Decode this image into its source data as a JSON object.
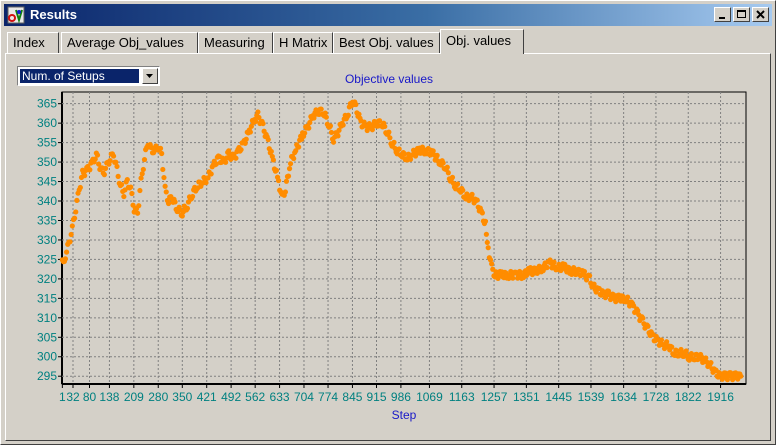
{
  "window": {
    "title": "Results"
  },
  "tabs": [
    {
      "label": "Index"
    },
    {
      "label": "Average Obj_values"
    },
    {
      "label": "Measuring"
    },
    {
      "label": "H Matrix"
    },
    {
      "label": "Best Obj. values"
    },
    {
      "label": "Obj. values",
      "active": true
    }
  ],
  "dropdown": {
    "selected": "Num. of Setups"
  },
  "colors": {
    "title_text": "#1818c8",
    "tick_text": "#008080",
    "points": "#ff8c00",
    "grid": "#808080"
  },
  "chart_data": {
    "type": "scatter",
    "title": "Objective values",
    "xlabel": "Step",
    "ylabel": "",
    "grid": true,
    "ylim": [
      293,
      368
    ],
    "yticks": [
      295,
      300,
      305,
      310,
      315,
      320,
      325,
      330,
      335,
      340,
      345,
      350,
      355,
      360,
      365
    ],
    "xlim": [
      0,
      1990
    ],
    "xtick_labels": [
      "1",
      "32",
      "80",
      "138",
      "209",
      "280",
      "350",
      "421",
      "492",
      "562",
      "633",
      "704",
      "774",
      "845",
      "915",
      "986",
      "1069",
      "1163",
      "1257",
      "1351",
      "1445",
      "1539",
      "1634",
      "1728",
      "1822",
      "1916"
    ],
    "xtick_values": [
      1,
      32,
      80,
      138,
      209,
      280,
      350,
      421,
      492,
      562,
      633,
      704,
      774,
      845,
      915,
      986,
      1069,
      1163,
      1257,
      1351,
      1445,
      1539,
      1634,
      1728,
      1822,
      1916
    ],
    "series_anchor_points": [
      [
        1,
        324
      ],
      [
        10,
        326
      ],
      [
        20,
        329
      ],
      [
        30,
        333
      ],
      [
        40,
        338
      ],
      [
        50,
        343
      ],
      [
        60,
        347
      ],
      [
        75,
        348
      ],
      [
        90,
        350
      ],
      [
        100,
        352
      ],
      [
        110,
        349
      ],
      [
        120,
        347
      ],
      [
        130,
        349
      ],
      [
        140,
        351
      ],
      [
        150,
        352
      ],
      [
        160,
        348
      ],
      [
        170,
        344
      ],
      [
        180,
        342
      ],
      [
        190,
        345
      ],
      [
        200,
        343
      ],
      [
        210,
        338
      ],
      [
        220,
        337
      ],
      [
        230,
        345
      ],
      [
        240,
        351
      ],
      [
        250,
        355
      ],
      [
        260,
        353
      ],
      [
        270,
        353
      ],
      [
        280,
        354
      ],
      [
        290,
        352
      ],
      [
        300,
        343
      ],
      [
        310,
        340
      ],
      [
        320,
        341
      ],
      [
        335,
        338
      ],
      [
        350,
        337
      ],
      [
        365,
        339
      ],
      [
        380,
        342
      ],
      [
        395,
        344
      ],
      [
        410,
        345
      ],
      [
        425,
        346
      ],
      [
        440,
        349
      ],
      [
        455,
        351
      ],
      [
        470,
        350
      ],
      [
        485,
        352
      ],
      [
        500,
        351
      ],
      [
        515,
        353
      ],
      [
        530,
        355
      ],
      [
        545,
        358
      ],
      [
        560,
        361
      ],
      [
        570,
        362
      ],
      [
        585,
        359
      ],
      [
        600,
        355
      ],
      [
        615,
        350
      ],
      [
        630,
        345
      ],
      [
        640,
        341
      ],
      [
        650,
        343
      ],
      [
        665,
        350
      ],
      [
        680,
        353
      ],
      [
        700,
        357
      ],
      [
        715,
        359
      ],
      [
        730,
        362
      ],
      [
        745,
        363
      ],
      [
        760,
        363
      ],
      [
        775,
        360
      ],
      [
        790,
        356
      ],
      [
        800,
        357
      ],
      [
        815,
        360
      ],
      [
        830,
        362
      ],
      [
        845,
        366
      ],
      [
        855,
        364
      ],
      [
        870,
        360
      ],
      [
        885,
        359
      ],
      [
        900,
        359
      ],
      [
        915,
        360
      ],
      [
        930,
        360
      ],
      [
        945,
        358
      ],
      [
        960,
        355
      ],
      [
        975,
        353
      ],
      [
        990,
        352
      ],
      [
        1005,
        351
      ],
      [
        1020,
        352
      ],
      [
        1040,
        353
      ],
      [
        1060,
        353
      ],
      [
        1080,
        352
      ],
      [
        1100,
        350
      ],
      [
        1115,
        349
      ],
      [
        1130,
        346
      ],
      [
        1145,
        344
      ],
      [
        1160,
        343
      ],
      [
        1175,
        341
      ],
      [
        1190,
        341
      ],
      [
        1205,
        340
      ],
      [
        1220,
        337
      ],
      [
        1232,
        334
      ],
      [
        1240,
        328
      ],
      [
        1250,
        323
      ],
      [
        1260,
        321
      ],
      [
        1280,
        321
      ],
      [
        1300,
        321
      ],
      [
        1320,
        321
      ],
      [
        1340,
        321
      ],
      [
        1360,
        322
      ],
      [
        1380,
        322
      ],
      [
        1400,
        323
      ],
      [
        1420,
        324
      ],
      [
        1440,
        323
      ],
      [
        1460,
        323
      ],
      [
        1480,
        322
      ],
      [
        1500,
        322
      ],
      [
        1520,
        321
      ],
      [
        1535,
        320
      ],
      [
        1545,
        318
      ],
      [
        1560,
        317
      ],
      [
        1575,
        316
      ],
      [
        1590,
        316
      ],
      [
        1605,
        315
      ],
      [
        1620,
        315
      ],
      [
        1640,
        315
      ],
      [
        1660,
        313
      ],
      [
        1675,
        311
      ],
      [
        1690,
        309
      ],
      [
        1705,
        307
      ],
      [
        1720,
        305
      ],
      [
        1735,
        304
      ],
      [
        1750,
        303
      ],
      [
        1765,
        303
      ],
      [
        1780,
        301
      ],
      [
        1795,
        301
      ],
      [
        1810,
        301
      ],
      [
        1825,
        300
      ],
      [
        1840,
        300
      ],
      [
        1855,
        300
      ],
      [
        1870,
        299
      ],
      [
        1885,
        298
      ],
      [
        1900,
        296
      ],
      [
        1915,
        295
      ],
      [
        1930,
        295
      ],
      [
        1945,
        295
      ],
      [
        1960,
        295
      ],
      [
        1975,
        295
      ]
    ]
  }
}
